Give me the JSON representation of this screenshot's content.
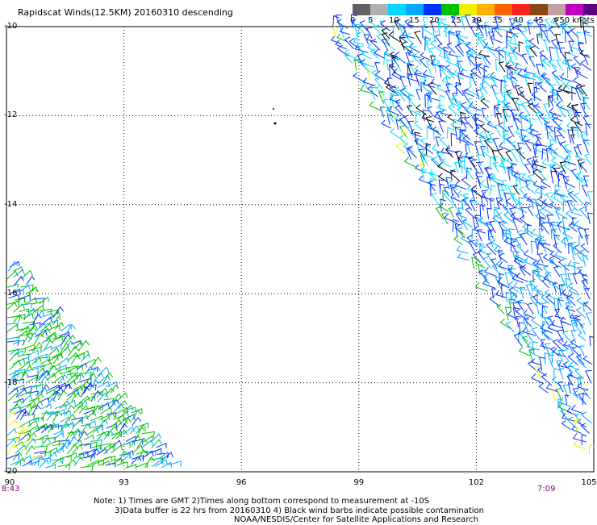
{
  "title": "Rapidscat Winds(12.5KM) 20160310 descending",
  "legend": {
    "colors": [
      "#606060",
      "#b0b0b0",
      "#00d8ff",
      "#00a8ff",
      "#0030ff",
      "#00c000",
      "#f0f000",
      "#ffb000",
      "#ff6000",
      "#ff2020",
      "#8b4513",
      "#c0a0a0",
      "#c000c0",
      "#600080"
    ],
    "labels": [
      "0",
      "5",
      "10",
      "15",
      "20",
      "25",
      "30",
      "35",
      "40",
      "45",
      ">50 knots"
    ]
  },
  "axes": {
    "lat_labels": [
      "-10",
      "-12",
      "-14",
      "-16",
      "-18",
      "-20"
    ],
    "lon_labels": [
      "90",
      "93",
      "96",
      "99",
      "102",
      "105"
    ],
    "lat_range": [
      -20,
      -10
    ],
    "lon_range": [
      90,
      105
    ]
  },
  "times": {
    "left": "8:43",
    "right": "7:09"
  },
  "notes": {
    "line1": "Note: 1) Times are GMT 2)Times along bottom correspond to measurement at -10S",
    "line2": "3)Data buffer is 22 hrs from 20160310 4) Black wind barbs indicate possible contamination",
    "line3": "NOAA/NESDIS/Center for Satellite Applications and Research"
  },
  "chart_data": {
    "type": "wind-barb-map",
    "units": "knots",
    "swaths": [
      {
        "region": "east",
        "lon_extent": [
          98.4,
          105
        ],
        "lat_extent": [
          -20,
          -10
        ],
        "dominant_speed_knots": "10-20"
      },
      {
        "region": "southwest",
        "lon_extent": [
          90,
          94.5
        ],
        "lat_extent": [
          -20,
          -15.5
        ],
        "dominant_speed_knots": "15-25"
      }
    ]
  }
}
